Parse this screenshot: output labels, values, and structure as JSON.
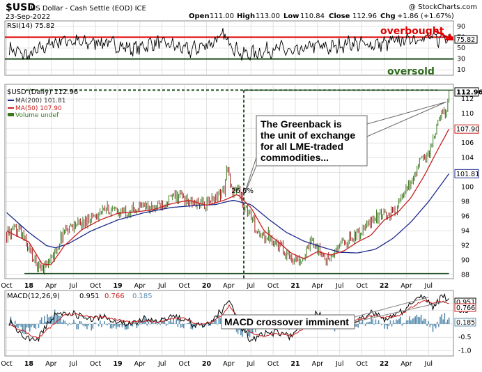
{
  "header": {
    "symbol": "$USD",
    "description": "US Dollar - Cash Settle (EOD) ICE",
    "date": "23-Sep-2022",
    "watermark": "@ StockCharts.com",
    "ohlc": {
      "open_label": "Open",
      "open": "111.00",
      "high_label": "High",
      "high": "113.00",
      "low_label": "Low",
      "low": "110.84",
      "close_label": "Close",
      "close": "112.96",
      "chg_label": "Chg",
      "chg": "+1.86 (+1.67%)"
    }
  },
  "colors": {
    "grid": "#d0d0d0",
    "pane_bg": "#ffffff",
    "price_up": "#3a7a1e",
    "price_down": "#a02020",
    "ma200": "#1c2a8c",
    "ma50": "#c81e1e",
    "annot_red": "#e00000",
    "annot_green": "#2d6a1a",
    "macd_hist": "#5a8fb0"
  },
  "chart_data": [
    {
      "type": "line",
      "name": "rsi-panel",
      "legend": "RSI(14) 75.82",
      "ylim": [
        0,
        100
      ],
      "yticks": [
        10,
        30,
        50,
        70,
        90
      ],
      "overbought_level": 70,
      "oversold_level": 30,
      "last_value": 75.82,
      "last_label": "75.82",
      "x": [
        2017.78,
        2018.0,
        2018.2,
        2018.4,
        2018.6,
        2018.8,
        2019.0,
        2019.2,
        2019.4,
        2019.6,
        2019.8,
        2020.0,
        2020.2,
        2020.4,
        2020.6,
        2020.8,
        2021.0,
        2021.2,
        2021.4,
        2021.6,
        2021.8,
        2022.0,
        2022.2,
        2022.4,
        2022.6,
        2022.73
      ],
      "y": [
        48,
        35,
        55,
        66,
        58,
        62,
        55,
        48,
        60,
        56,
        45,
        56,
        72,
        38,
        42,
        50,
        40,
        55,
        50,
        60,
        56,
        58,
        64,
        70,
        66,
        75.82
      ],
      "annotations": [
        {
          "text": "overbought",
          "color": "#e00000"
        },
        {
          "text": "oversold",
          "color": "#2d6a1a"
        }
      ]
    },
    {
      "type": "line",
      "name": "price-panel",
      "legend": "$USD (Daily) 112.96",
      "ylim": [
        87.5,
        114
      ],
      "yticks": [
        88,
        90,
        92,
        94,
        96,
        98,
        100,
        102,
        104,
        106,
        108,
        110,
        112
      ],
      "x_ticks": [
        "Oct",
        "18",
        "Apr",
        "Jul",
        "Oct",
        "19",
        "Apr",
        "Jul",
        "Oct",
        "20",
        "Apr",
        "Jul",
        "Oct",
        "21",
        "Apr",
        "Jul",
        "Oct",
        "22",
        "Apr",
        "Jul"
      ],
      "x_tick_pos": [
        2017.75,
        2018.0,
        2018.25,
        2018.5,
        2018.75,
        2019.0,
        2019.25,
        2019.5,
        2019.75,
        2020.0,
        2020.25,
        2020.5,
        2020.75,
        2021.0,
        2021.25,
        2021.5,
        2021.75,
        2022.0,
        2022.25,
        2022.5
      ],
      "xlim": [
        2017.73,
        2022.78
      ],
      "series": [
        {
          "name": "$USD",
          "x": [
            2017.75,
            2017.9,
            2018.0,
            2018.08,
            2018.15,
            2018.25,
            2018.32,
            2018.4,
            2018.5,
            2018.6,
            2018.7,
            2018.8,
            2018.9,
            2019.0,
            2019.1,
            2019.2,
            2019.3,
            2019.4,
            2019.5,
            2019.6,
            2019.7,
            2019.8,
            2019.9,
            2020.0,
            2020.1,
            2020.2,
            2020.23,
            2020.28,
            2020.35,
            2020.42,
            2020.5,
            2020.6,
            2020.7,
            2020.8,
            2020.9,
            2021.0,
            2021.1,
            2021.2,
            2021.25,
            2021.35,
            2021.42,
            2021.5,
            2021.6,
            2021.7,
            2021.8,
            2021.9,
            2022.0,
            2022.1,
            2022.2,
            2022.3,
            2022.4,
            2022.5,
            2022.55,
            2022.6,
            2022.65,
            2022.7,
            2022.73
          ],
          "y": [
            93.5,
            94.2,
            91.5,
            89.5,
            89.0,
            90.0,
            91.8,
            94.2,
            94.8,
            95.0,
            96.0,
            96.5,
            97.0,
            96.5,
            96.7,
            97.0,
            97.5,
            97.0,
            97.8,
            98.5,
            98.8,
            97.8,
            97.7,
            97.6,
            98.7,
            99.5,
            102.8,
            99.5,
            100.0,
            97.5,
            96.0,
            93.0,
            93.5,
            92.2,
            91.0,
            90.0,
            90.5,
            92.8,
            91.5,
            90.2,
            90.5,
            92.2,
            92.8,
            93.5,
            94.5,
            96.0,
            96.0,
            96.5,
            98.5,
            100.5,
            103.5,
            104.5,
            106.5,
            108.5,
            110.0,
            110.5,
            112.96
          ]
        },
        {
          "name": "MA(200) 101.81",
          "x": [
            2017.75,
            2018.0,
            2018.2,
            2018.3,
            2018.45,
            2018.7,
            2019.0,
            2019.3,
            2019.6,
            2019.9,
            2020.1,
            2020.3,
            2020.5,
            2020.7,
            2020.9,
            2021.1,
            2021.3,
            2021.5,
            2021.7,
            2021.9,
            2022.1,
            2022.3,
            2022.5,
            2022.73
          ],
          "y": [
            96.5,
            93.8,
            92.0,
            91.7,
            92.3,
            94.0,
            95.5,
            96.5,
            97.2,
            97.5,
            97.6,
            98.2,
            97.6,
            95.6,
            93.8,
            92.6,
            91.8,
            91.1,
            91.0,
            91.5,
            93.0,
            95.2,
            98.0,
            101.81
          ]
        },
        {
          "name": "MA(50) 107.90",
          "x": [
            2017.75,
            2018.0,
            2018.15,
            2018.25,
            2018.4,
            2018.6,
            2018.8,
            2019.0,
            2019.2,
            2019.4,
            2019.6,
            2019.8,
            2020.0,
            2020.2,
            2020.35,
            2020.5,
            2020.65,
            2020.8,
            2020.95,
            2021.1,
            2021.25,
            2021.4,
            2021.55,
            2021.7,
            2021.85,
            2022.0,
            2022.15,
            2022.3,
            2022.45,
            2022.6,
            2022.73
          ],
          "y": [
            94.0,
            92.5,
            89.5,
            89.4,
            92.0,
            94.2,
            95.5,
            96.4,
            96.6,
            96.9,
            97.7,
            98.2,
            97.5,
            98.2,
            99.0,
            97.2,
            94.0,
            92.6,
            91.0,
            90.2,
            91.2,
            90.7,
            91.3,
            92.5,
            93.4,
            95.5,
            96.5,
            98.5,
            101.5,
            105.0,
            107.9
          ]
        }
      ],
      "legend_entries": [
        "MA(200) 101.81",
        "MA(50) 107.90",
        "Volume undef"
      ],
      "last_labels": [
        "112.96",
        "107.90",
        "101.81"
      ],
      "pct_label": "26.6%",
      "annotation": [
        "The Greenback is",
        "the unit of exchange",
        "for all LME-traded",
        "commodities..."
      ]
    },
    {
      "type": "line",
      "name": "macd-panel",
      "legend_prefix": "MACD(12,26,9)",
      "legend_macd": "0.951",
      "legend_signal": "0.766",
      "legend_hist": "0.185",
      "ylim": [
        -1.2,
        1.25
      ],
      "yticks": [
        -1.0,
        -0.5,
        0.0,
        0.5
      ],
      "yticklabels": [
        "-1.0",
        "-0.5",
        "0.0",
        "0.5"
      ],
      "right_labels": [
        "0.951",
        "0.766",
        "0.185"
      ],
      "x_ticks": [
        "Oct",
        "18",
        "Apr",
        "Jul",
        "Oct",
        "19",
        "Apr",
        "Jul",
        "Oct",
        "20",
        "Apr",
        "Jul",
        "Oct",
        "21",
        "Apr",
        "Jul",
        "Oct",
        "22",
        "Apr",
        "Jul"
      ],
      "x": [
        2017.78,
        2017.95,
        2018.1,
        2018.25,
        2018.4,
        2018.55,
        2018.7,
        2018.85,
        2019.0,
        2019.15,
        2019.3,
        2019.45,
        2019.6,
        2019.75,
        2019.9,
        2020.05,
        2020.2,
        2020.25,
        2020.35,
        2020.5,
        2020.65,
        2020.8,
        2020.95,
        2021.1,
        2021.25,
        2021.4,
        2021.55,
        2021.7,
        2021.85,
        2022.0,
        2022.15,
        2022.3,
        2022.45,
        2022.55,
        2022.65,
        2022.73
      ],
      "macd": [
        0.1,
        -0.45,
        -0.6,
        0.2,
        0.5,
        0.3,
        0.2,
        0.3,
        0.1,
        0.0,
        0.2,
        0.0,
        0.3,
        0.2,
        -0.1,
        0.1,
        0.6,
        1.0,
        0.1,
        -0.6,
        -0.4,
        -0.3,
        -0.5,
        0.0,
        0.4,
        -0.1,
        0.3,
        0.1,
        0.4,
        0.2,
        0.3,
        0.8,
        1.1,
        0.6,
        1.0,
        0.951
      ],
      "signal": [
        0.0,
        -0.3,
        -0.55,
        -0.1,
        0.35,
        0.35,
        0.25,
        0.25,
        0.15,
        0.05,
        0.12,
        0.05,
        0.2,
        0.2,
        0.0,
        0.05,
        0.4,
        0.7,
        0.3,
        -0.35,
        -0.45,
        -0.35,
        -0.45,
        -0.15,
        0.25,
        0.05,
        0.2,
        0.15,
        0.3,
        0.25,
        0.28,
        0.6,
        0.9,
        0.8,
        0.85,
        0.766
      ],
      "annotation": "MACD crossover imminent"
    }
  ]
}
